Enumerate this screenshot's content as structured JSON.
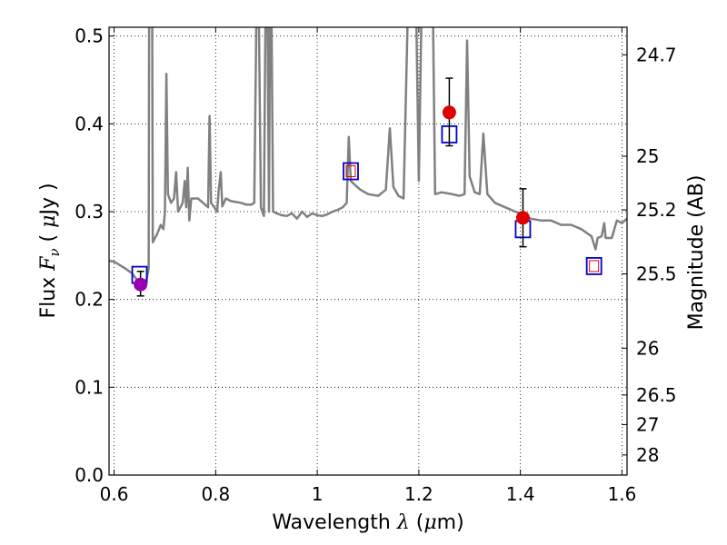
{
  "chart_data": {
    "type": "scatter",
    "xlabel": {
      "prefix": "Wavelength ",
      "var": "λ",
      "paren_open": " (",
      "mu": "μ",
      "unit": "m)"
    },
    "ylabel": {
      "prefix": "Flux  ",
      "var": "F",
      "sub": "ν",
      "paren_open": "  ( ",
      "mu": "μ",
      "unit": "Jy )"
    },
    "y2label": "Magnitude (AB)",
    "xlim": [
      0.59,
      1.61
    ],
    "ylim": [
      0.0,
      0.51
    ],
    "x_ticks": [
      0.6,
      0.8,
      1.0,
      1.2,
      1.4,
      1.6
    ],
    "x_tick_labels": [
      "0.6",
      "0.8",
      "1",
      "1.2",
      "1.4",
      "1.6"
    ],
    "y_ticks": [
      0.0,
      0.1,
      0.2,
      0.3,
      0.4,
      0.5
    ],
    "y_tick_labels": [
      "0.0",
      "0.1",
      "0.2",
      "0.3",
      "0.4",
      "0.5"
    ],
    "y2_ticks": [
      {
        "label": "24.7",
        "flux": 0.4786
      },
      {
        "label": "25",
        "flux": 0.3631
      },
      {
        "label": "25.2",
        "flux": 0.302
      },
      {
        "label": "25.5",
        "flux": 0.2291
      },
      {
        "label": "26",
        "flux": 0.1445
      },
      {
        "label": "26.5",
        "flux": 0.0912
      },
      {
        "label": "27",
        "flux": 0.0575
      },
      {
        "label": "28",
        "flux": 0.0229
      }
    ],
    "grid": true,
    "colors": {
      "model": "#808080",
      "observed_point": "#e00000",
      "first_point": "#9a00b0",
      "model_box": "#0000cc",
      "model_box_inner": "#e00000",
      "errorbar": "#000000"
    },
    "model_spectrum": [
      [
        0.59,
        0.244
      ],
      [
        0.6,
        0.243
      ],
      [
        0.62,
        0.236
      ],
      [
        0.635,
        0.23
      ],
      [
        0.648,
        0.22
      ],
      [
        0.655,
        0.216
      ],
      [
        0.662,
        0.217
      ],
      [
        0.668,
        0.235
      ],
      [
        0.669,
        0.52
      ],
      [
        0.675,
        0.52
      ],
      [
        0.676,
        0.265
      ],
      [
        0.685,
        0.275
      ],
      [
        0.692,
        0.285
      ],
      [
        0.697,
        0.28
      ],
      [
        0.7,
        0.3
      ],
      [
        0.703,
        0.457
      ],
      [
        0.706,
        0.32
      ],
      [
        0.712,
        0.31
      ],
      [
        0.718,
        0.315
      ],
      [
        0.722,
        0.345
      ],
      [
        0.726,
        0.3
      ],
      [
        0.735,
        0.31
      ],
      [
        0.739,
        0.335
      ],
      [
        0.742,
        0.305
      ],
      [
        0.745,
        0.35
      ],
      [
        0.748,
        0.29
      ],
      [
        0.752,
        0.315
      ],
      [
        0.765,
        0.315
      ],
      [
        0.775,
        0.31
      ],
      [
        0.785,
        0.305
      ],
      [
        0.788,
        0.409
      ],
      [
        0.791,
        0.31
      ],
      [
        0.797,
        0.305
      ],
      [
        0.803,
        0.3
      ],
      [
        0.806,
        0.325
      ],
      [
        0.81,
        0.345
      ],
      [
        0.813,
        0.306
      ],
      [
        0.82,
        0.315
      ],
      [
        0.83,
        0.312
      ],
      [
        0.84,
        0.311
      ],
      [
        0.85,
        0.31
      ],
      [
        0.86,
        0.308
      ],
      [
        0.87,
        0.308
      ],
      [
        0.876,
        0.31
      ],
      [
        0.88,
        0.52
      ],
      [
        0.885,
        0.52
      ],
      [
        0.889,
        0.305
      ],
      [
        0.895,
        0.295
      ],
      [
        0.898,
        0.52
      ],
      [
        0.902,
        0.52
      ],
      [
        0.905,
        0.3
      ],
      [
        0.907,
        0.52
      ],
      [
        0.91,
        0.52
      ],
      [
        0.913,
        0.3
      ],
      [
        0.92,
        0.298
      ],
      [
        0.93,
        0.296
      ],
      [
        0.94,
        0.295
      ],
      [
        0.95,
        0.298
      ],
      [
        0.96,
        0.292
      ],
      [
        0.97,
        0.3
      ],
      [
        0.98,
        0.294
      ],
      [
        0.99,
        0.298
      ],
      [
        1.0,
        0.296
      ],
      [
        1.01,
        0.295
      ],
      [
        1.02,
        0.297
      ],
      [
        1.03,
        0.3
      ],
      [
        1.04,
        0.302
      ],
      [
        1.05,
        0.305
      ],
      [
        1.058,
        0.31
      ],
      [
        1.062,
        0.385
      ],
      [
        1.066,
        0.335
      ],
      [
        1.075,
        0.33
      ],
      [
        1.085,
        0.325
      ],
      [
        1.1,
        0.32
      ],
      [
        1.12,
        0.318
      ],
      [
        1.135,
        0.325
      ],
      [
        1.143,
        0.395
      ],
      [
        1.15,
        0.328
      ],
      [
        1.16,
        0.318
      ],
      [
        1.17,
        0.315
      ],
      [
        1.178,
        0.52
      ],
      [
        1.188,
        0.52
      ],
      [
        1.195,
        0.52
      ],
      [
        1.2,
        0.335
      ],
      [
        1.205,
        0.52
      ],
      [
        1.228,
        0.52
      ],
      [
        1.232,
        0.32
      ],
      [
        1.245,
        0.322
      ],
      [
        1.265,
        0.32
      ],
      [
        1.28,
        0.318
      ],
      [
        1.29,
        0.32
      ],
      [
        1.295,
        0.495
      ],
      [
        1.3,
        0.34
      ],
      [
        1.31,
        0.322
      ],
      [
        1.32,
        0.32
      ],
      [
        1.327,
        0.389
      ],
      [
        1.335,
        0.32
      ],
      [
        1.35,
        0.31
      ],
      [
        1.37,
        0.305
      ],
      [
        1.39,
        0.3
      ],
      [
        1.4,
        0.298
      ],
      [
        1.42,
        0.292
      ],
      [
        1.44,
        0.29
      ],
      [
        1.46,
        0.29
      ],
      [
        1.48,
        0.285
      ],
      [
        1.5,
        0.285
      ],
      [
        1.52,
        0.28
      ],
      [
        1.54,
        0.272
      ],
      [
        1.548,
        0.257
      ],
      [
        1.552,
        0.27
      ],
      [
        1.56,
        0.272
      ],
      [
        1.565,
        0.287
      ],
      [
        1.568,
        0.27
      ],
      [
        1.58,
        0.27
      ],
      [
        1.59,
        0.29
      ],
      [
        1.6,
        0.287
      ],
      [
        1.61,
        0.292
      ]
    ],
    "model_boxes": [
      {
        "x": 0.65,
        "y": 0.228
      },
      {
        "x": 1.066,
        "y": 0.346
      },
      {
        "x": 1.26,
        "y": 0.388
      },
      {
        "x": 1.405,
        "y": 0.28
      },
      {
        "x": 1.545,
        "y": 0.238
      }
    ],
    "inner_boxes": [
      {
        "x": 1.066,
        "y": 0.346
      },
      {
        "x": 1.545,
        "y": 0.238
      }
    ],
    "observed_points": [
      {
        "x": 0.652,
        "y": 0.217,
        "err_low": 0.204,
        "err_high": 0.232,
        "color": "first_point"
      },
      {
        "x": 1.26,
        "y": 0.413,
        "err_low": 0.375,
        "err_high": 0.452,
        "color": "observed_point"
      },
      {
        "x": 1.405,
        "y": 0.293,
        "err_low": 0.26,
        "err_high": 0.326,
        "color": "observed_point"
      }
    ]
  }
}
